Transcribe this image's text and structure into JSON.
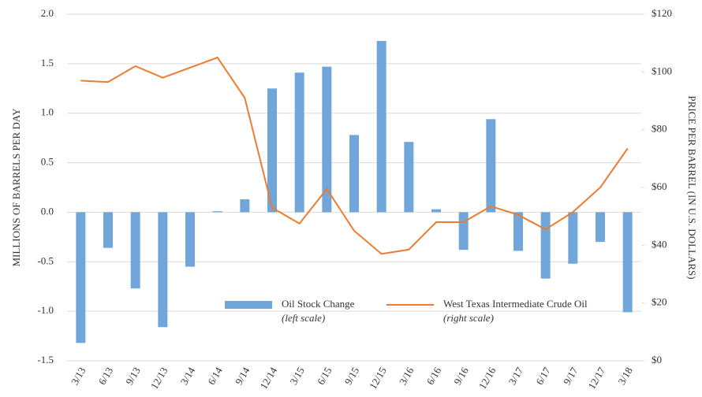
{
  "chart_data": {
    "type": "bar_line",
    "categories": [
      "3/13",
      "6/13",
      "9/13",
      "12/13",
      "3/14",
      "6/14",
      "9/14",
      "12/14",
      "3/15",
      "6/15",
      "9/15",
      "12/15",
      "3/16",
      "6/16",
      "9/16",
      "12/16",
      "3/17",
      "6/17",
      "9/17",
      "12/17",
      "3/18"
    ],
    "series": [
      {
        "name": "Oil Stock Change",
        "scale_note": "(left scale)",
        "type": "bar",
        "color": "#70a6d9",
        "values": [
          -1.32,
          -0.36,
          -0.77,
          -1.16,
          -0.55,
          0.01,
          0.13,
          1.25,
          1.41,
          1.47,
          0.78,
          1.73,
          0.71,
          0.03,
          -0.38,
          0.94,
          -0.39,
          -0.67,
          -0.52,
          -0.3,
          -1.01
        ]
      },
      {
        "name": "West Texas Intermediate Crude Oil",
        "scale_note": "(right scale)",
        "type": "line",
        "axis": "y2",
        "color": "#ec7c30",
        "values": [
          97,
          96.5,
          102,
          98,
          101.5,
          105,
          91,
          53,
          47.5,
          59.5,
          45,
          37,
          38.5,
          48,
          48,
          53.5,
          50.5,
          45.5,
          51.5,
          60,
          73.5
        ]
      }
    ],
    "y_label": "MILLIONS OF BARRELS PER DAY",
    "y2_label": "PRICE PER BARREL (IN U.S. DOLLARS)",
    "ylim": [
      -1.5,
      2.0
    ],
    "yticks": [
      -1.5,
      {
        "value": -1,
        "label": "-1.0"
      },
      -0.5,
      {
        "value": 0,
        "label": "0.0"
      },
      0.5,
      {
        "value": 1,
        "label": "1.0"
      },
      1.5,
      {
        "value": 2,
        "label": "2.0"
      }
    ],
    "y2lim": [
      0,
      120
    ],
    "y2ticks": [
      {
        "value": 0,
        "label": "$0"
      },
      {
        "value": 20,
        "label": "$20"
      },
      {
        "value": 40,
        "label": "$40"
      },
      {
        "value": 60,
        "label": "$60"
      },
      {
        "value": 80,
        "label": "$80"
      },
      {
        "value": 100,
        "label": "$100"
      },
      {
        "value": 120,
        "label": "$120"
      }
    ],
    "grid": true
  }
}
